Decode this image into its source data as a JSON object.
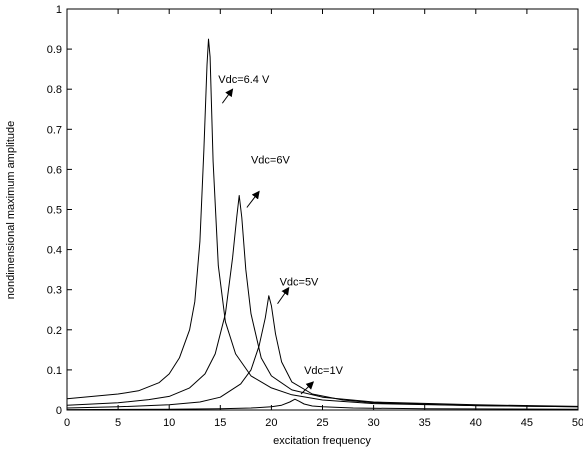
{
  "chart_data": {
    "type": "line",
    "title": "",
    "xlabel": "excitation frequency",
    "ylabel": "nondimensional maximum amplitude",
    "xlim": [
      0,
      50
    ],
    "ylim": [
      0,
      1
    ],
    "xticks": [
      0,
      5,
      10,
      15,
      20,
      25,
      30,
      35,
      40,
      45,
      50
    ],
    "yticks": [
      0,
      0.1,
      0.2,
      0.3,
      0.4,
      0.5,
      0.6,
      0.7,
      0.8,
      0.9,
      1
    ],
    "grid": false,
    "legend": "none",
    "line_color": "#000000",
    "series": [
      {
        "x": [
          0,
          5,
          7,
          9,
          10,
          11,
          12,
          12.5,
          13,
          13.4,
          13.7,
          13.85,
          14.0,
          14.3,
          14.8,
          15.5,
          16.5,
          18,
          20,
          22,
          25,
          30,
          40,
          50
        ],
        "values": [
          0.028,
          0.04,
          0.048,
          0.068,
          0.09,
          0.13,
          0.2,
          0.27,
          0.42,
          0.65,
          0.86,
          0.925,
          0.88,
          0.62,
          0.36,
          0.22,
          0.14,
          0.085,
          0.055,
          0.038,
          0.025,
          0.016,
          0.011,
          0.008
        ]
      },
      {
        "x": [
          0,
          5,
          8,
          10,
          12,
          13.5,
          14.5,
          15.5,
          16.2,
          16.6,
          16.85,
          17.1,
          17.5,
          18,
          19,
          20,
          22,
          25,
          30,
          40,
          50
        ],
        "values": [
          0.012,
          0.018,
          0.026,
          0.034,
          0.055,
          0.09,
          0.14,
          0.24,
          0.38,
          0.48,
          0.535,
          0.48,
          0.35,
          0.24,
          0.13,
          0.085,
          0.05,
          0.032,
          0.02,
          0.013,
          0.009
        ]
      },
      {
        "x": [
          0,
          5,
          10,
          13,
          15,
          17,
          18,
          18.8,
          19.4,
          19.75,
          20.0,
          20.4,
          21,
          22,
          24,
          27,
          30,
          40,
          50
        ],
        "values": [
          0.005,
          0.008,
          0.013,
          0.02,
          0.032,
          0.065,
          0.1,
          0.16,
          0.23,
          0.285,
          0.26,
          0.19,
          0.12,
          0.07,
          0.04,
          0.025,
          0.018,
          0.011,
          0.008
        ]
      },
      {
        "x": [
          0,
          10,
          15,
          18,
          20,
          21,
          21.8,
          22.3,
          22.7,
          23.2,
          24,
          25,
          28,
          35,
          50
        ],
        "values": [
          0.001,
          0.002,
          0.003,
          0.005,
          0.008,
          0.012,
          0.02,
          0.027,
          0.022,
          0.015,
          0.01,
          0.008,
          0.005,
          0.003,
          0.002
        ]
      }
    ],
    "annotations": [
      {
        "text": "Vdc=6.4 V",
        "x": 14.8,
        "y": 0.815,
        "arrow_from": [
          15.2,
          0.765
        ],
        "arrow_to": [
          16.2,
          0.8
        ]
      },
      {
        "text": "Vdc=6V",
        "x": 18.0,
        "y": 0.615,
        "arrow_from": [
          17.6,
          0.505
        ],
        "arrow_to": [
          18.8,
          0.545
        ]
      },
      {
        "text": "Vdc=5V",
        "x": 20.8,
        "y": 0.31,
        "arrow_from": [
          20.6,
          0.265
        ],
        "arrow_to": [
          21.7,
          0.305
        ]
      },
      {
        "text": "Vdc=1V",
        "x": 23.2,
        "y": 0.09,
        "arrow_from": [
          22.9,
          0.04
        ],
        "arrow_to": [
          24.1,
          0.07
        ]
      }
    ]
  }
}
